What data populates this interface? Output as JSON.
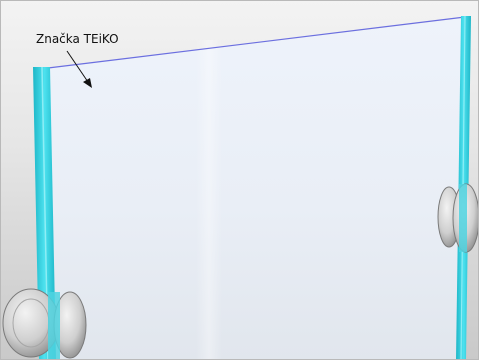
{
  "annotation": {
    "label": "Značka TEiKO"
  },
  "colors": {
    "glass_edge": "#36d7e6",
    "glass_edge_dark": "#1eb6c7",
    "glass_top_line": "#6b6fe0",
    "panel_tint": "#e8eff8",
    "hardware": "#c9c9c9",
    "background": "#e3e3e3"
  }
}
